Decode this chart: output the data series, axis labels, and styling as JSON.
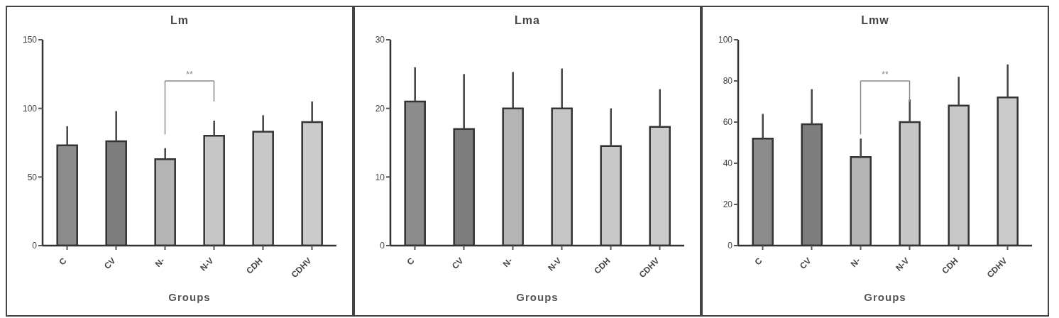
{
  "chart_data": [
    {
      "type": "bar",
      "title": "Lm",
      "xlabel": "Groups",
      "categories": [
        "C",
        "CV",
        "N-",
        "N-V",
        "CDH",
        "CDHV"
      ],
      "values": [
        73,
        76,
        63,
        80,
        83,
        90
      ],
      "errors": [
        [
          73,
          87
        ],
        [
          76,
          98
        ],
        [
          63,
          71
        ],
        [
          80,
          91
        ],
        [
          83,
          95
        ],
        [
          90,
          105
        ]
      ],
      "colors": [
        "#8c8c8c",
        "#7d7d7d",
        "#b4b4b4",
        "#c6c6c6",
        "#c8c8c8",
        "#cbcbcb"
      ],
      "ylim": [
        0,
        150
      ],
      "yticks": [
        0,
        50,
        100,
        150
      ],
      "grid": false,
      "legend": false,
      "annotations": [
        "**"
      ]
    },
    {
      "type": "bar",
      "title": "Lma",
      "xlabel": "Groups",
      "categories": [
        "C",
        "CV",
        "N-",
        "N-V",
        "CDH",
        "CDHV"
      ],
      "values": [
        21,
        17,
        20,
        20,
        14.5,
        17.3
      ],
      "errors": [
        [
          21,
          26
        ],
        [
          17,
          25
        ],
        [
          20,
          25.3
        ],
        [
          20,
          25.8
        ],
        [
          14.5,
          20
        ],
        [
          17.3,
          22.8
        ]
      ],
      "colors": [
        "#8c8c8c",
        "#7d7d7d",
        "#b4b4b4",
        "#c6c6c6",
        "#c8c8c8",
        "#cbcbcb"
      ],
      "ylim": [
        0,
        30
      ],
      "yticks": [
        0,
        10,
        20,
        30
      ],
      "grid": false,
      "legend": false
    },
    {
      "type": "bar",
      "title": "Lmw",
      "xlabel": "Groups",
      "categories": [
        "C",
        "CV",
        "N-",
        "N-V",
        "CDH",
        "CDHV"
      ],
      "values": [
        52,
        59,
        43,
        60,
        68,
        72
      ],
      "errors": [
        [
          52,
          64
        ],
        [
          59,
          76
        ],
        [
          43,
          52
        ],
        [
          60,
          71
        ],
        [
          68,
          82
        ],
        [
          72,
          88
        ]
      ],
      "colors": [
        "#8c8c8c",
        "#7d7d7d",
        "#b4b4b4",
        "#c6c6c6",
        "#c8c8c8",
        "#cbcbcb"
      ],
      "ylim": [
        0,
        100
      ],
      "yticks": [
        0,
        20,
        40,
        60,
        80,
        100
      ],
      "grid": false,
      "legend": false,
      "annotations": [
        "**"
      ]
    }
  ]
}
